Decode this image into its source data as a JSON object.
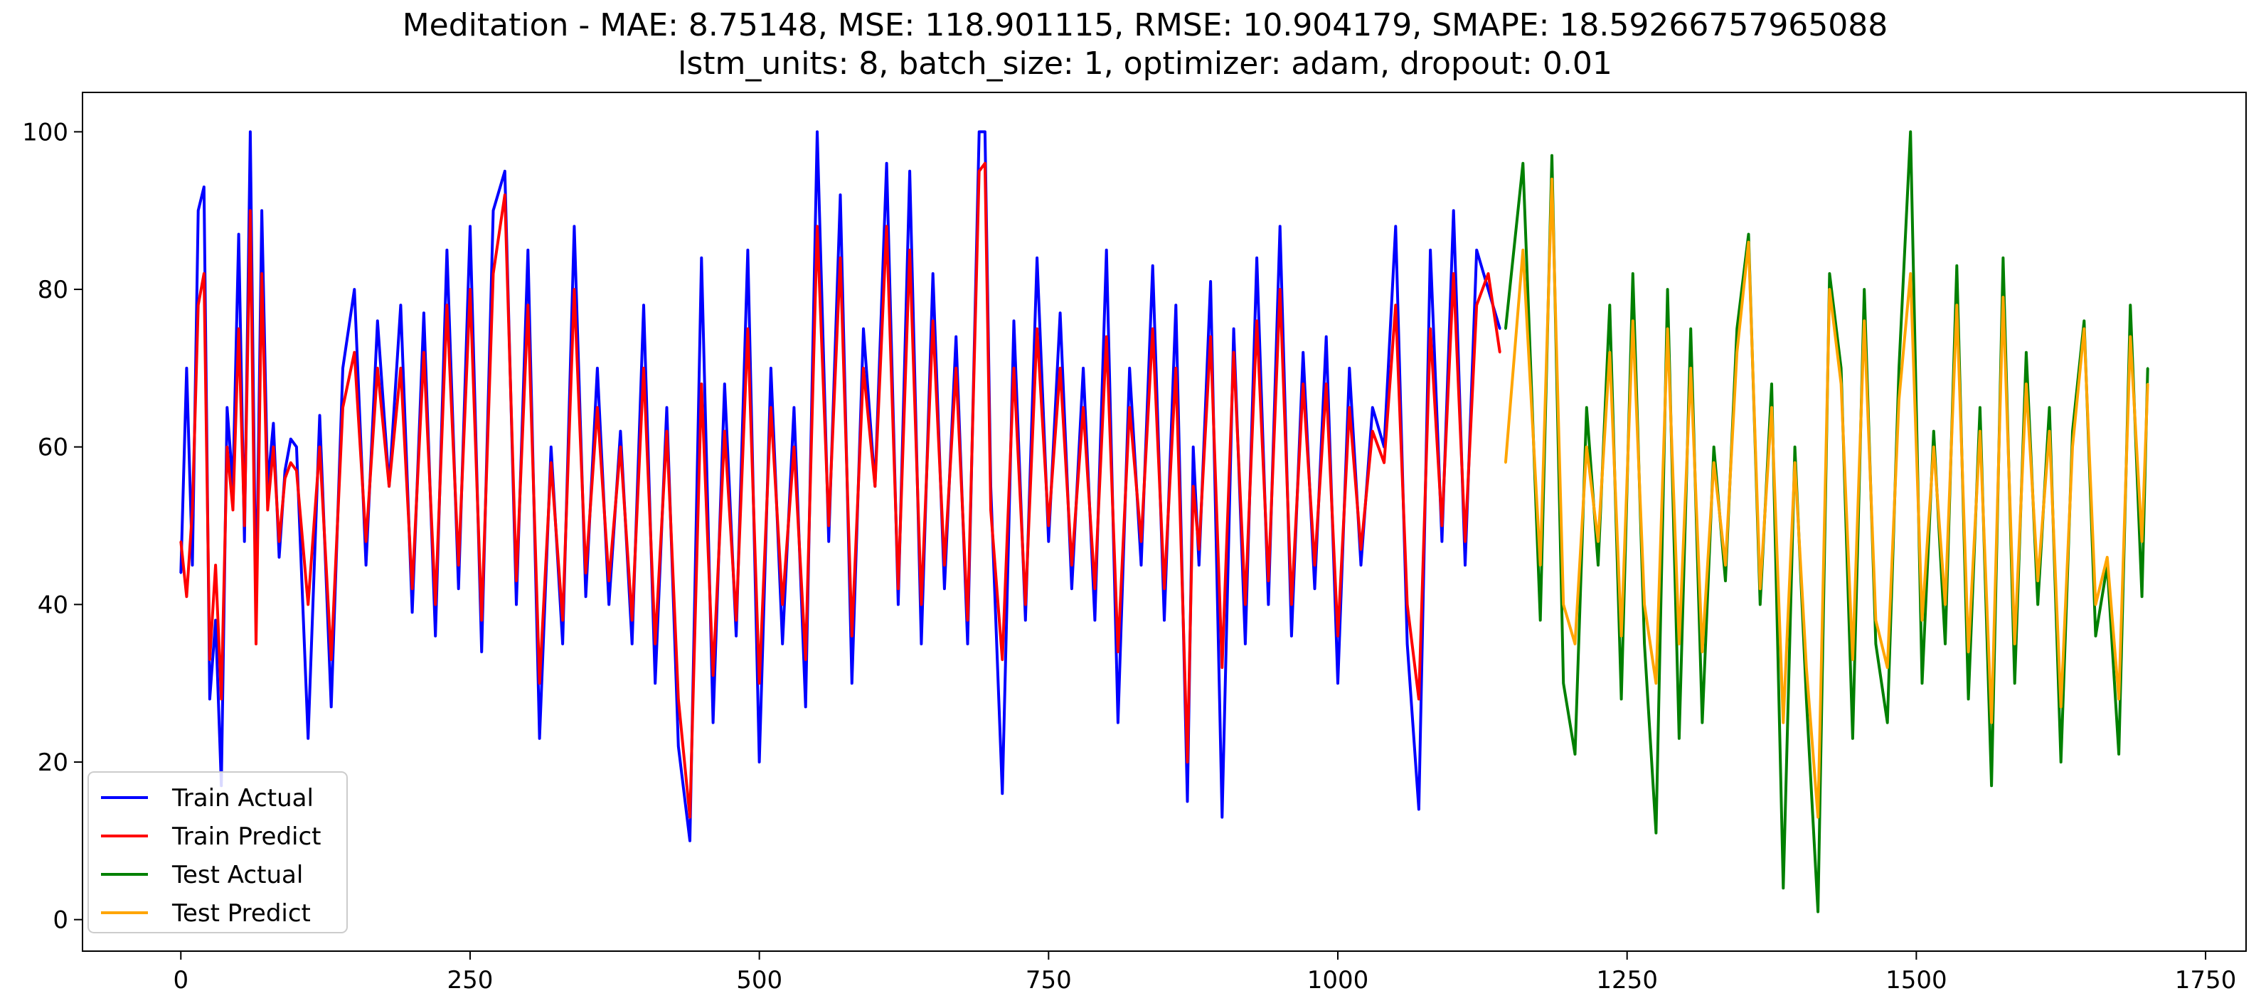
{
  "chart_data": {
    "type": "line",
    "title_lines": [
      "Meditation - MAE: 8.75148, MSE: 118.901115, RMSE: 10.904179, SMAPE: 18.59266757965088",
      "lstm_units: 8, batch_size: 1, optimizer: adam, dropout: 0.01"
    ],
    "xlabel": "",
    "ylabel": "",
    "xlim": [
      -85,
      1785
    ],
    "ylim": [
      -4,
      105
    ],
    "xticks": [
      0,
      250,
      500,
      750,
      1000,
      1250,
      1500,
      1750
    ],
    "yticks": [
      0,
      20,
      40,
      60,
      80,
      100
    ],
    "grid": false,
    "legend_position": "lower-left",
    "series": [
      {
        "name": "Train Actual",
        "color": "#0000ff",
        "x": [
          0,
          5,
          10,
          15,
          20,
          25,
          30,
          35,
          40,
          45,
          50,
          55,
          60,
          65,
          70,
          75,
          80,
          85,
          90,
          95,
          100,
          110,
          120,
          130,
          140,
          150,
          160,
          170,
          180,
          190,
          200,
          210,
          220,
          230,
          240,
          250,
          260,
          270,
          280,
          290,
          300,
          310,
          320,
          330,
          340,
          350,
          360,
          370,
          380,
          390,
          400,
          410,
          420,
          430,
          440,
          450,
          460,
          470,
          480,
          490,
          500,
          510,
          520,
          530,
          540,
          550,
          560,
          570,
          580,
          590,
          600,
          610,
          620,
          630,
          640,
          650,
          660,
          670,
          680,
          690,
          695,
          700,
          710,
          720,
          730,
          740,
          750,
          760,
          770,
          780,
          790,
          800,
          810,
          820,
          830,
          840,
          850,
          860,
          870,
          875,
          880,
          890,
          900,
          910,
          920,
          930,
          940,
          950,
          960,
          970,
          980,
          990,
          1000,
          1010,
          1020,
          1030,
          1040,
          1050,
          1060,
          1070,
          1080,
          1090,
          1100,
          1110,
          1120,
          1130,
          1140
        ],
        "values": [
          44,
          70,
          45,
          90,
          93,
          28,
          38,
          17,
          65,
          55,
          87,
          48,
          100,
          38,
          90,
          55,
          63,
          46,
          57,
          61,
          60,
          23,
          64,
          27,
          70,
          80,
          45,
          76,
          55,
          78,
          39,
          77,
          36,
          85,
          42,
          88,
          34,
          90,
          95,
          40,
          85,
          23,
          60,
          35,
          88,
          41,
          70,
          40,
          62,
          35,
          78,
          30,
          65,
          22,
          10,
          84,
          25,
          68,
          36,
          85,
          20,
          70,
          35,
          65,
          27,
          100,
          48,
          92,
          30,
          75,
          55,
          96,
          40,
          95,
          35,
          82,
          42,
          74,
          35,
          100,
          100,
          55,
          16,
          76,
          38,
          84,
          48,
          77,
          42,
          70,
          38,
          85,
          25,
          70,
          45,
          83,
          38,
          78,
          15,
          60,
          45,
          81,
          13,
          75,
          35,
          84,
          40,
          88,
          36,
          72,
          42,
          74,
          30,
          70,
          45,
          65,
          60,
          88,
          35,
          14,
          85,
          48,
          90,
          45,
          85,
          80,
          75
        ]
      },
      {
        "name": "Train Predict",
        "color": "#ff0000",
        "x": [
          0,
          5,
          10,
          15,
          20,
          25,
          30,
          35,
          40,
          45,
          50,
          55,
          60,
          65,
          70,
          75,
          80,
          85,
          90,
          95,
          100,
          110,
          120,
          130,
          140,
          150,
          160,
          170,
          180,
          190,
          200,
          210,
          220,
          230,
          240,
          250,
          260,
          270,
          280,
          290,
          300,
          310,
          320,
          330,
          340,
          350,
          360,
          370,
          380,
          390,
          400,
          410,
          420,
          430,
          440,
          450,
          460,
          470,
          480,
          490,
          500,
          510,
          520,
          530,
          540,
          550,
          560,
          570,
          580,
          590,
          600,
          610,
          620,
          630,
          640,
          650,
          660,
          670,
          680,
          690,
          695,
          700,
          710,
          720,
          730,
          740,
          750,
          760,
          770,
          780,
          790,
          800,
          810,
          820,
          830,
          840,
          850,
          860,
          870,
          875,
          880,
          890,
          900,
          910,
          920,
          930,
          940,
          950,
          960,
          970,
          980,
          990,
          1000,
          1010,
          1020,
          1030,
          1040,
          1050,
          1060,
          1070,
          1080,
          1090,
          1100,
          1110,
          1120,
          1130,
          1140
        ],
        "values": [
          48,
          41,
          52,
          78,
          82,
          33,
          45,
          28,
          60,
          52,
          75,
          50,
          90,
          35,
          82,
          52,
          60,
          48,
          56,
          58,
          57,
          40,
          60,
          33,
          65,
          72,
          48,
          70,
          55,
          70,
          42,
          72,
          40,
          78,
          45,
          80,
          38,
          82,
          92,
          43,
          78,
          30,
          58,
          38,
          80,
          44,
          65,
          43,
          60,
          38,
          70,
          35,
          62,
          28,
          13,
          68,
          31,
          62,
          38,
          75,
          30,
          65,
          40,
          60,
          33,
          88,
          50,
          84,
          36,
          70,
          55,
          88,
          42,
          85,
          40,
          76,
          45,
          70,
          38,
          95,
          96,
          52,
          33,
          70,
          40,
          75,
          50,
          70,
          45,
          65,
          42,
          74,
          34,
          65,
          48,
          75,
          42,
          70,
          20,
          55,
          47,
          74,
          32,
          72,
          40,
          76,
          43,
          80,
          40,
          68,
          45,
          68,
          36,
          65,
          47,
          62,
          58,
          78,
          40,
          28,
          75,
          50,
          82,
          48,
          78,
          82,
          72
        ]
      },
      {
        "name": "Test Actual",
        "color": "#008000",
        "x": [
          1145,
          1160,
          1175,
          1185,
          1195,
          1205,
          1215,
          1225,
          1235,
          1245,
          1255,
          1265,
          1275,
          1285,
          1295,
          1305,
          1315,
          1325,
          1335,
          1345,
          1355,
          1365,
          1375,
          1385,
          1395,
          1405,
          1415,
          1425,
          1435,
          1445,
          1455,
          1465,
          1475,
          1485,
          1495,
          1505,
          1515,
          1525,
          1535,
          1545,
          1555,
          1565,
          1575,
          1585,
          1595,
          1605,
          1615,
          1625,
          1635,
          1645,
          1655,
          1665,
          1675,
          1685,
          1695,
          1700
        ],
        "values": [
          75,
          96,
          38,
          97,
          30,
          21,
          65,
          45,
          78,
          28,
          82,
          35,
          11,
          80,
          23,
          75,
          25,
          60,
          43,
          75,
          87,
          40,
          68,
          4,
          60,
          28,
          1,
          82,
          70,
          23,
          80,
          35,
          25,
          70,
          100,
          30,
          62,
          35,
          83,
          28,
          65,
          17,
          84,
          30,
          72,
          40,
          65,
          20,
          62,
          76,
          36,
          45,
          21,
          78,
          41,
          70
        ]
      },
      {
        "name": "Test Predict",
        "color": "#ffa500",
        "x": [
          1145,
          1160,
          1175,
          1185,
          1195,
          1205,
          1215,
          1225,
          1235,
          1245,
          1255,
          1265,
          1275,
          1285,
          1295,
          1305,
          1315,
          1325,
          1335,
          1345,
          1355,
          1365,
          1375,
          1385,
          1395,
          1405,
          1415,
          1425,
          1435,
          1445,
          1455,
          1465,
          1475,
          1485,
          1495,
          1505,
          1515,
          1525,
          1535,
          1545,
          1555,
          1565,
          1575,
          1585,
          1595,
          1605,
          1615,
          1625,
          1635,
          1645,
          1655,
          1665,
          1675,
          1685,
          1695,
          1700
        ],
        "values": [
          58,
          85,
          45,
          94,
          40,
          35,
          60,
          48,
          72,
          36,
          76,
          40,
          30,
          75,
          35,
          70,
          34,
          58,
          45,
          72,
          86,
          42,
          65,
          25,
          58,
          32,
          13,
          80,
          68,
          33,
          76,
          38,
          32,
          66,
          82,
          38,
          60,
          40,
          78,
          34,
          62,
          25,
          79,
          35,
          68,
          43,
          62,
          27,
          60,
          75,
          40,
          46,
          28,
          74,
          48,
          68
        ]
      }
    ]
  }
}
